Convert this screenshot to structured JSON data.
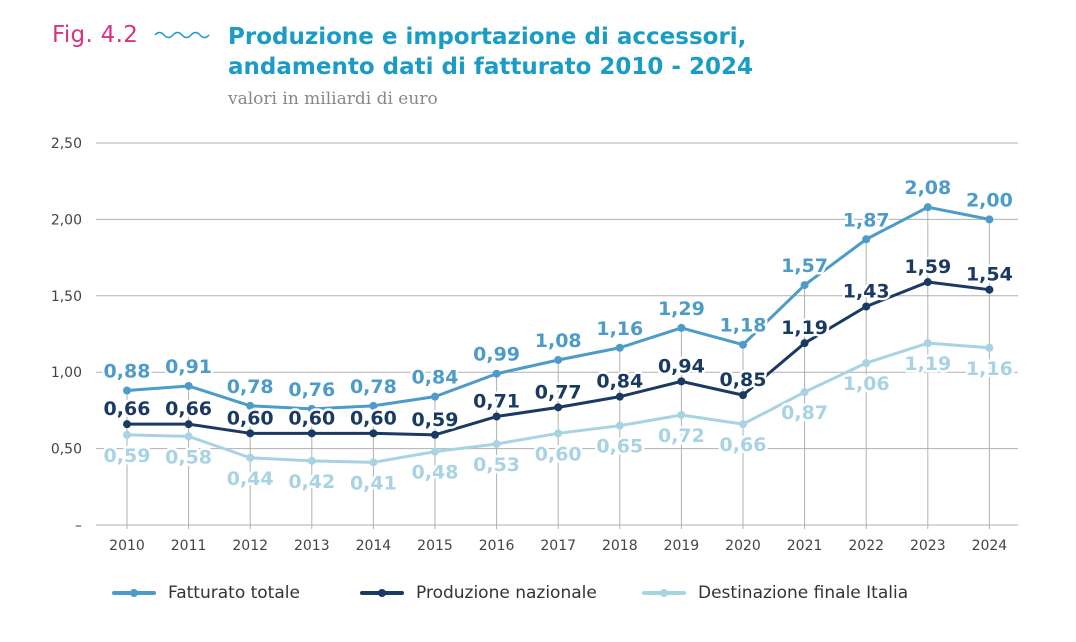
{
  "header": {
    "fig_label": "Fig. 4.2",
    "title_line1": "Produzione e importazione di accessori,",
    "title_line2": "andamento dati di fatturato 2010 - 2024",
    "subtitle": "valori in miliardi di euro"
  },
  "colors": {
    "fatturato": "#4d9bc8",
    "produzione": "#1a3a63",
    "destinazione": "#a8d3e3",
    "grid": "#b0b0b0",
    "axis_text": "#444444",
    "fig_label": "#d9337f",
    "title": "#1b9cc4"
  },
  "chart_data": {
    "type": "line",
    "title": "Produzione e importazione di accessori, andamento dati di fatturato 2010 - 2024",
    "subtitle": "valori in miliardi di euro",
    "xlabel": "",
    "ylabel": "",
    "ylim": [
      0,
      2.5
    ],
    "yticks": [
      0,
      0.5,
      1.0,
      1.5,
      2.0,
      2.5
    ],
    "ytick_labels": [
      "–",
      "0,50",
      "1,00",
      "1,50",
      "2,00",
      "2,50"
    ],
    "grid": true,
    "legend_position": "bottom",
    "categories": [
      "2010",
      "2011",
      "2012",
      "2013",
      "2014",
      "2015",
      "2016",
      "2017",
      "2018",
      "2019",
      "2020",
      "2021",
      "2022",
      "2023",
      "2024"
    ],
    "series": [
      {
        "name": "Fatturato totale",
        "color_key": "fatturato",
        "values": [
          0.88,
          0.91,
          0.78,
          0.76,
          0.78,
          0.84,
          0.99,
          1.08,
          1.16,
          1.29,
          1.18,
          1.57,
          1.87,
          2.08,
          2.0
        ],
        "labels": [
          "0,88",
          "0,91",
          "0,78",
          "0,76",
          "0,78",
          "0,84",
          "0,99",
          "1,08",
          "1,16",
          "1,29",
          "1,18",
          "1,57",
          "1,87",
          "2,08",
          "2,00"
        ]
      },
      {
        "name": "Produzione nazionale",
        "color_key": "produzione",
        "values": [
          0.66,
          0.66,
          0.6,
          0.6,
          0.6,
          0.59,
          0.71,
          0.77,
          0.84,
          0.94,
          0.85,
          1.19,
          1.43,
          1.59,
          1.54
        ],
        "labels": [
          "0,66",
          "0,66",
          "0,60",
          "0,60",
          "0,60",
          "0,59",
          "0,71",
          "0,77",
          "0,84",
          "0,94",
          "0,85",
          "1,19",
          "1,43",
          "1,59",
          "1,54"
        ]
      },
      {
        "name": "Destinazione finale Italia",
        "color_key": "destinazione",
        "values": [
          0.59,
          0.58,
          0.44,
          0.42,
          0.41,
          0.48,
          0.53,
          0.6,
          0.65,
          0.72,
          0.66,
          0.87,
          1.06,
          1.19,
          1.16
        ],
        "labels": [
          "0,59",
          "0,58",
          "0,44",
          "0,42",
          "0,41",
          "0,48",
          "0,53",
          "0,60",
          "0,65",
          "0,72",
          "0,66",
          "0,87",
          "1,06",
          "1,19",
          "1,16"
        ]
      }
    ]
  }
}
